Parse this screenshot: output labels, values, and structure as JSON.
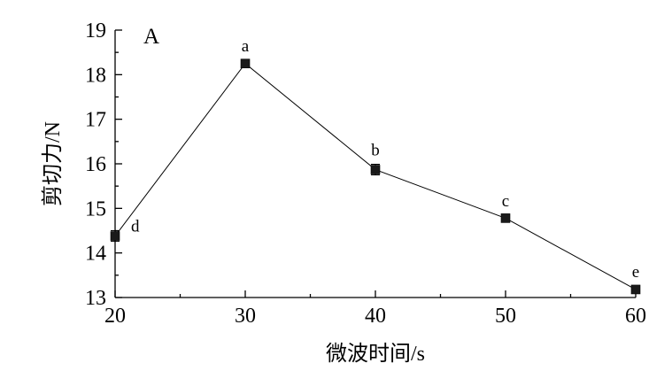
{
  "chart_data": {
    "type": "line",
    "panel_label": "A",
    "xlabel": "微波时间/s",
    "ylabel": "剪切力/N",
    "xlim": [
      20,
      60
    ],
    "ylim": [
      13,
      19
    ],
    "xticks": [
      20,
      30,
      40,
      50,
      60
    ],
    "yticks": [
      13,
      14,
      15,
      16,
      17,
      18,
      19
    ],
    "grid": false,
    "series": [
      {
        "x": [
          20,
          30,
          40,
          50,
          60
        ],
        "values": [
          14.38,
          18.25,
          15.87,
          14.78,
          13.18
        ],
        "error": [
          0.12,
          0.07,
          0.12,
          0.07,
          0.08
        ],
        "labels": [
          "d",
          "a",
          "b",
          "c",
          "e"
        ],
        "color": "#000000",
        "marker": "square"
      }
    ]
  }
}
